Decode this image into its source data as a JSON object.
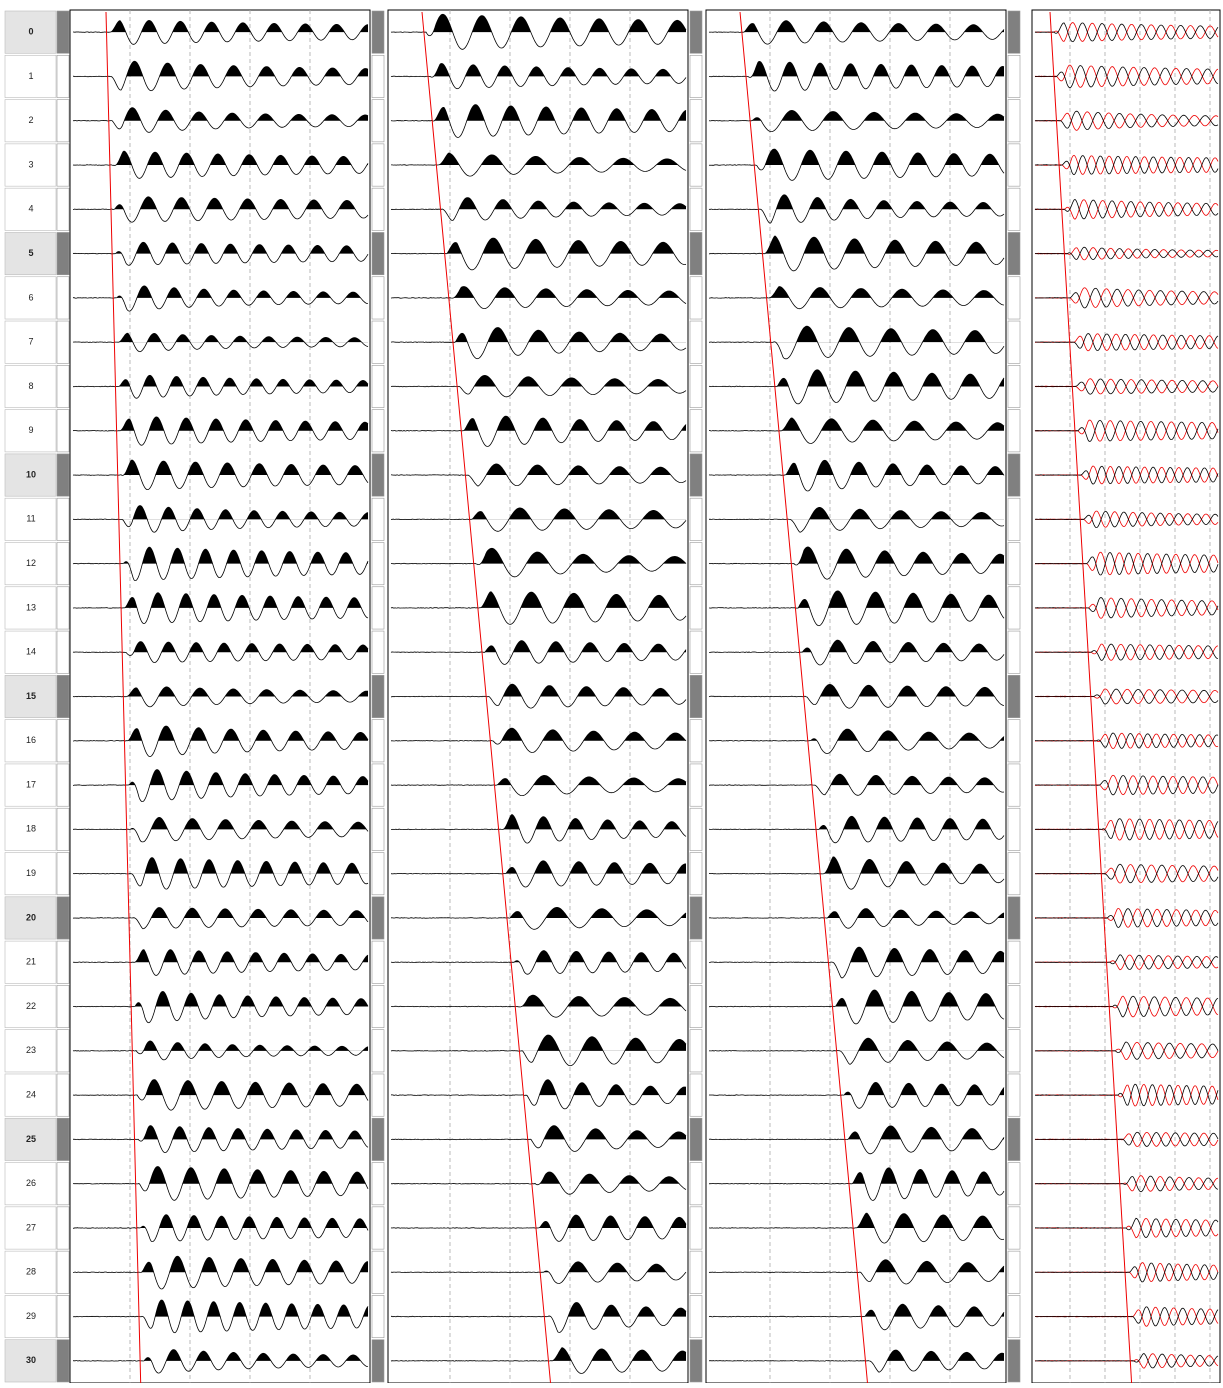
{
  "rows": [
    "0",
    "1",
    "2",
    "3",
    "4",
    "5",
    "6",
    "7",
    "8",
    "9",
    "10",
    "11",
    "12",
    "13",
    "14",
    "15",
    "16",
    "17",
    "18",
    "19",
    "20",
    "21",
    "22",
    "23",
    "24",
    "25",
    "26",
    "27",
    "28",
    "29",
    "30"
  ]
}
